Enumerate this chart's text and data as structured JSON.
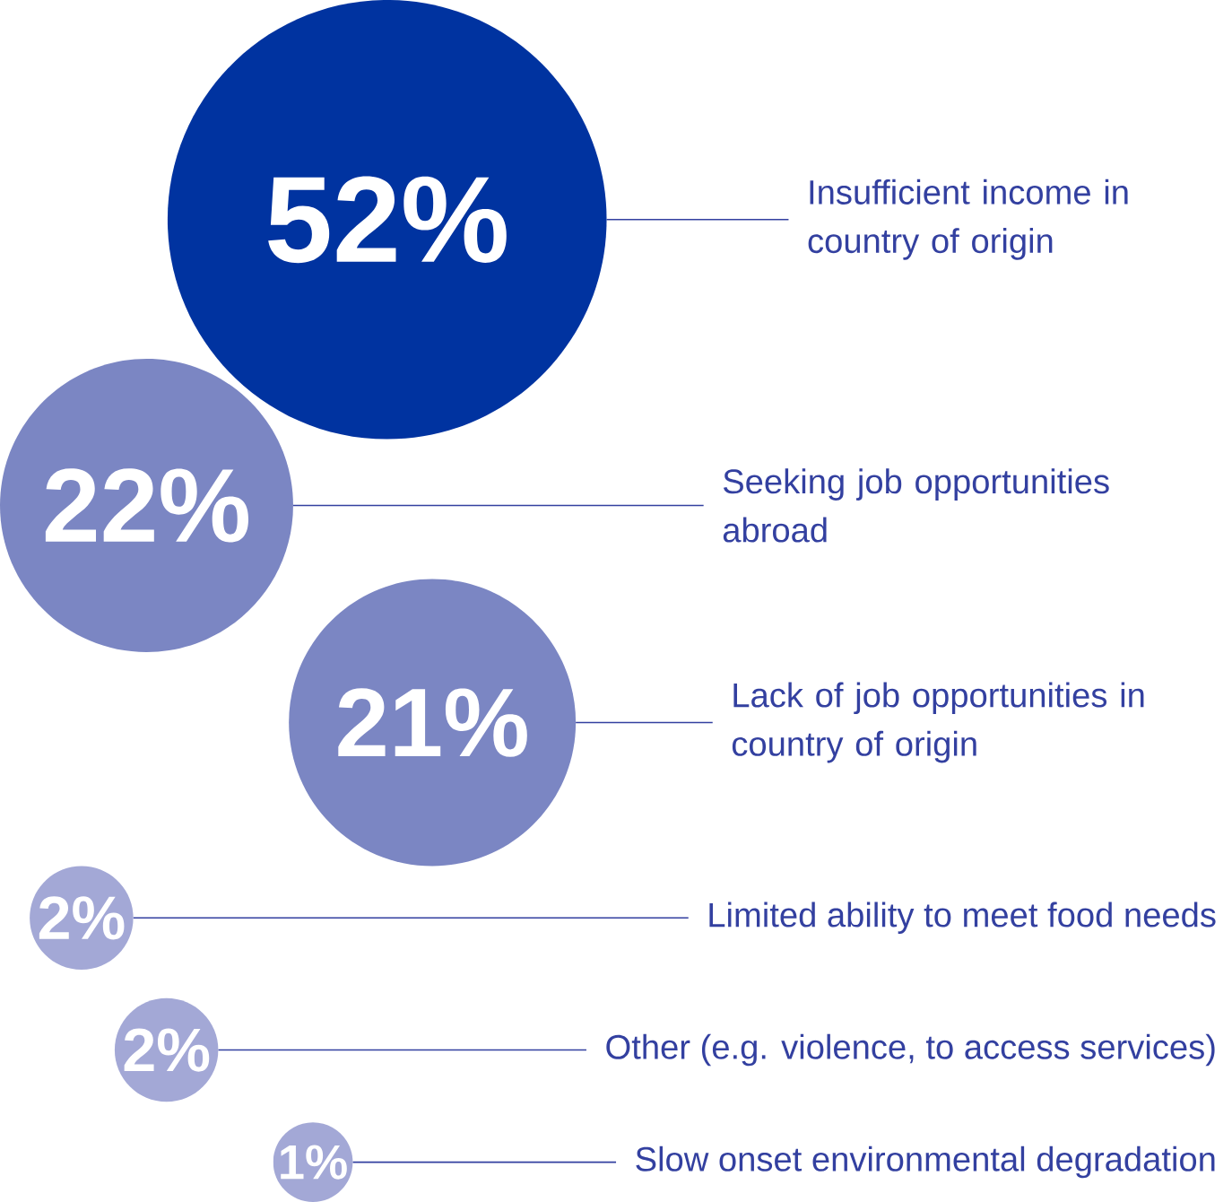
{
  "chart_data": {
    "type": "other",
    "categories": [
      "Insufficient income in country of origin",
      "Seeking job opportunities abroad",
      "Lack of job opportunities in country of origin",
      "Limited ability to meet food needs",
      "Other (e.g. violence, to access services)",
      "Slow onset environmental degradation"
    ],
    "values": [
      52,
      22,
      21,
      2,
      2,
      1
    ],
    "value_labels": [
      "52%",
      "22%",
      "21%",
      "2%",
      "2%",
      "1%"
    ],
    "colors": [
      "#0033a0",
      "#7b86c3",
      "#7b86c3",
      "#a3a8d6",
      "#a3a8d6",
      "#a3a8d6"
    ]
  }
}
